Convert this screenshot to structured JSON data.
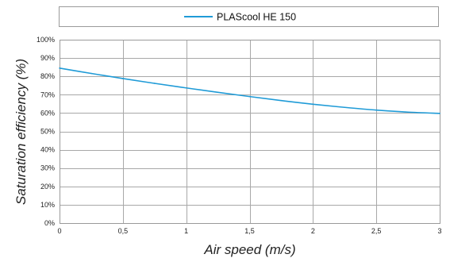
{
  "chart_data": {
    "type": "line",
    "title": "",
    "xlabel": "Air speed  (m/s)",
    "ylabel": "Saturation efficiency (%)",
    "xlim": [
      0,
      3
    ],
    "ylim": [
      0,
      100
    ],
    "x_ticks": [
      {
        "value": 0,
        "label": "0"
      },
      {
        "value": 0.5,
        "label": "0,5"
      },
      {
        "value": 1,
        "label": "1"
      },
      {
        "value": 1.5,
        "label": "1,5"
      },
      {
        "value": 2,
        "label": "2"
      },
      {
        "value": 2.5,
        "label": "2,5"
      },
      {
        "value": 3,
        "label": "3"
      }
    ],
    "y_ticks": [
      {
        "value": 0,
        "label": "0%"
      },
      {
        "value": 10,
        "label": "10%"
      },
      {
        "value": 20,
        "label": "20%"
      },
      {
        "value": 30,
        "label": "30%"
      },
      {
        "value": 40,
        "label": "40%"
      },
      {
        "value": 50,
        "label": "50%"
      },
      {
        "value": 60,
        "label": "60%"
      },
      {
        "value": 70,
        "label": "70%"
      },
      {
        "value": 80,
        "label": "80%"
      },
      {
        "value": 90,
        "label": "90%"
      },
      {
        "value": 100,
        "label": "100%"
      }
    ],
    "grid": true,
    "legend_position": "top",
    "series": [
      {
        "name": "PLAScool HE 150",
        "color": "#1f9bd7",
        "x": [
          0,
          0.25,
          0.5,
          0.75,
          1,
          1.25,
          1.5,
          1.75,
          2,
          2.25,
          2.5,
          2.75,
          3
        ],
        "y": [
          84.5,
          81.6,
          78.8,
          76.2,
          73.7,
          71.3,
          69.0,
          66.8,
          64.8,
          63.1,
          61.6,
          60.5,
          59.8
        ]
      }
    ]
  }
}
